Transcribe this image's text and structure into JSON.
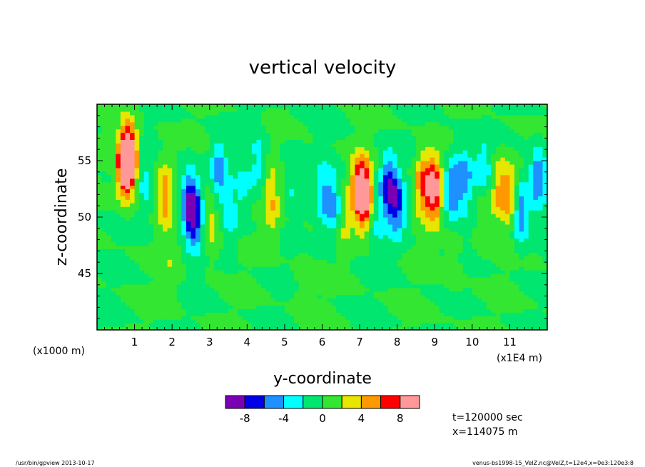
{
  "chart_data": {
    "type": "heatmap",
    "title": "vertical velocity",
    "xlabel": "y-coordinate",
    "ylabel": "z-coordinate",
    "x_units_note": "(x1E4 m)",
    "y_units_note": "(x1000 m)",
    "xlim": [
      0,
      12
    ],
    "ylim": [
      40,
      60
    ],
    "x_ticks": [
      "1",
      "2",
      "3",
      "4",
      "5",
      "6",
      "7",
      "8",
      "9",
      "10",
      "11"
    ],
    "y_ticks": [
      "45",
      "50",
      "55"
    ],
    "colorbar": {
      "colors": [
        "#7b00b4",
        "#0000e6",
        "#1e90ff",
        "#00ffff",
        "#00e66e",
        "#32e632",
        "#e6e600",
        "#ff9900",
        "#ff0000",
        "#ff9999"
      ],
      "tick_labels": [
        "-8",
        "-4",
        "0",
        "4",
        "8"
      ]
    },
    "blobs": [
      {
        "y": 0.75,
        "z": 54.5,
        "w": 9
      },
      {
        "y": 0.85,
        "z": 55.5,
        "w": 10
      },
      {
        "y": 1.3,
        "z": 53.0,
        "w": -2.5
      },
      {
        "y": 1.8,
        "z": 52.0,
        "w": 5
      },
      {
        "y": 2.45,
        "z": 51.5,
        "w": -7
      },
      {
        "y": 2.6,
        "z": 50.0,
        "w": -7
      },
      {
        "y": 3.05,
        "z": 49.5,
        "w": 3.5
      },
      {
        "y": 3.25,
        "z": 54.0,
        "w": -5
      },
      {
        "y": 3.55,
        "z": 50.0,
        "w": -2.5
      },
      {
        "y": 3.9,
        "z": 52.5,
        "w": -2.5
      },
      {
        "y": 4.3,
        "z": 54.8,
        "w": -3
      },
      {
        "y": 4.65,
        "z": 51.5,
        "w": 4
      },
      {
        "y": 5.2,
        "z": 53.5,
        "w": -2
      },
      {
        "y": 6.05,
        "z": 52.0,
        "w": -4
      },
      {
        "y": 6.35,
        "z": 51.0,
        "w": -5
      },
      {
        "y": 6.55,
        "z": 50.0,
        "w": 3
      },
      {
        "y": 7.0,
        "z": 52.5,
        "w": 8.5
      },
      {
        "y": 7.15,
        "z": 51.8,
        "w": 7
      },
      {
        "y": 7.45,
        "z": 49.5,
        "w": -2
      },
      {
        "y": 7.75,
        "z": 52.8,
        "w": -7
      },
      {
        "y": 8.0,
        "z": 51.0,
        "w": -6
      },
      {
        "y": 8.7,
        "z": 53.0,
        "w": 6
      },
      {
        "y": 9.0,
        "z": 52.5,
        "w": 8.5
      },
      {
        "y": 9.45,
        "z": 52.5,
        "w": -6
      },
      {
        "y": 9.8,
        "z": 53.5,
        "w": -5
      },
      {
        "y": 10.3,
        "z": 54.0,
        "w": -4
      },
      {
        "y": 10.7,
        "z": 52.5,
        "w": 4
      },
      {
        "y": 10.3,
        "z": 50.5,
        "w": 3
      },
      {
        "y": 11.0,
        "z": 52.0,
        "w": 5
      },
      {
        "y": 11.3,
        "z": 50.5,
        "w": -6
      },
      {
        "y": 11.75,
        "z": 53.5,
        "w": -6
      },
      {
        "y": 2.0,
        "z": 46.0,
        "w": 1.5
      },
      {
        "y": 5.5,
        "z": 44.0,
        "w": 1.2
      },
      {
        "y": 9.5,
        "z": 46.0,
        "w": 1.5
      }
    ]
  },
  "annotations": {
    "time": "t=120000 sec",
    "position": "x=114075 m",
    "footer_left": "/usr/bin/gpview   2013-10-17",
    "footer_right": "venus-bs1998-15_VelZ.nc@VelZ,t=12e4,x=0e3:120e3:8"
  }
}
